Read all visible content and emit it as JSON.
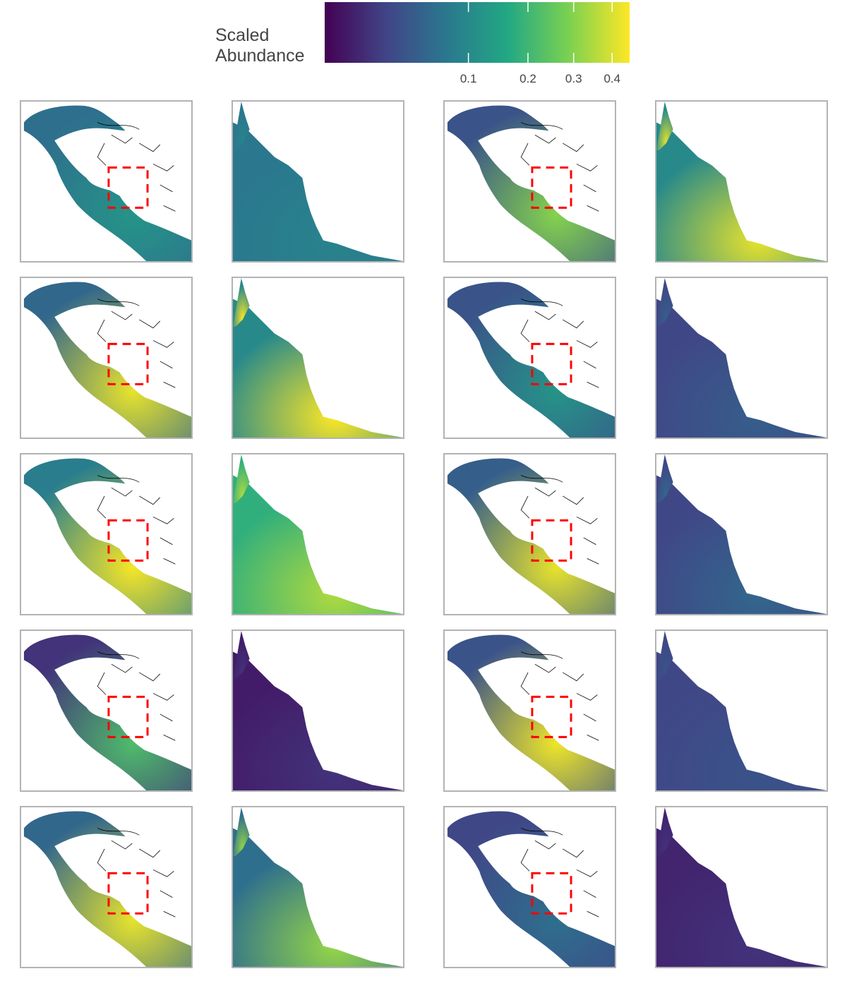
{
  "legend": {
    "title_line1": "Scaled",
    "title_line2": "Abundance",
    "ticks": [
      {
        "label": "0.1",
        "value": 0.1
      },
      {
        "label": "0.2",
        "value": 0.2
      },
      {
        "label": "0.3",
        "value": 0.3
      },
      {
        "label": "0.4",
        "value": 0.4
      }
    ],
    "scale": "sqrt",
    "range": [
      0,
      0.45
    ],
    "colors": [
      "#440154",
      "#414487",
      "#2a788e",
      "#22a884",
      "#7ad151",
      "#fde725"
    ]
  },
  "highlight_color": "#ff0000",
  "panels": [
    {
      "row": 1,
      "view": "region",
      "mean": 0.06,
      "hotspot": 0.12
    },
    {
      "row": 1,
      "view": "inset",
      "mean": 0.07,
      "hotspot": 0.09
    },
    {
      "row": 1,
      "view": "region",
      "mean": 0.03,
      "hotspot": 0.3
    },
    {
      "row": 1,
      "view": "inset",
      "mean": 0.1,
      "hotspot": 0.42
    },
    {
      "row": 2,
      "view": "region",
      "mean": 0.05,
      "hotspot": 0.42
    },
    {
      "row": 2,
      "view": "inset",
      "mean": 0.1,
      "hotspot": 0.45
    },
    {
      "row": 2,
      "view": "region",
      "mean": 0.03,
      "hotspot": 0.12
    },
    {
      "row": 2,
      "view": "inset",
      "mean": 0.02,
      "hotspot": 0.04
    },
    {
      "row": 3,
      "view": "region",
      "mean": 0.08,
      "hotspot": 0.44
    },
    {
      "row": 3,
      "view": "inset",
      "mean": 0.18,
      "hotspot": 0.35
    },
    {
      "row": 3,
      "view": "region",
      "mean": 0.04,
      "hotspot": 0.42
    },
    {
      "row": 3,
      "view": "inset",
      "mean": 0.02,
      "hotspot": 0.05
    },
    {
      "row": 4,
      "view": "region",
      "mean": 0.01,
      "hotspot": 0.22
    },
    {
      "row": 4,
      "view": "inset",
      "mean": 0.003,
      "hotspot": 0.01
    },
    {
      "row": 4,
      "view": "region",
      "mean": 0.03,
      "hotspot": 0.43
    },
    {
      "row": 4,
      "view": "inset",
      "mean": 0.02,
      "hotspot": 0.03
    },
    {
      "row": 5,
      "view": "region",
      "mean": 0.05,
      "hotspot": 0.42
    },
    {
      "row": 5,
      "view": "inset",
      "mean": 0.06,
      "hotspot": 0.32
    },
    {
      "row": 5,
      "view": "region",
      "mean": 0.02,
      "hotspot": 0.06
    },
    {
      "row": 5,
      "view": "inset",
      "mean": 0.005,
      "hotspot": 0.01
    }
  ]
}
